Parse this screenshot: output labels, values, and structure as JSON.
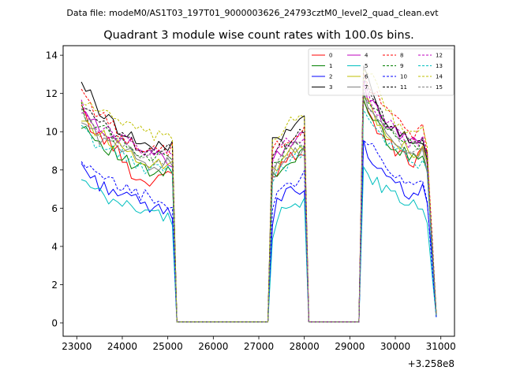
{
  "suptitle": "Data file: modeM0/AS1T03_197T01_9000003626_24793cztM0_level2_quad_clean.evt",
  "chart_data": {
    "type": "line",
    "title": "Quadrant 3 module wise count rates with 100.0s bins.",
    "xlabel": "",
    "ylabel": "",
    "x_offset_label": "+3.258e8",
    "xlim": [
      22700,
      31300
    ],
    "ylim": [
      -0.7,
      14.5
    ],
    "xticks": [
      23000,
      24000,
      25000,
      26000,
      27000,
      28000,
      29000,
      30000,
      31000
    ],
    "xtick_labels": [
      "23000",
      "24000",
      "25000",
      "26000",
      "27000",
      "28000",
      "29000",
      "30000",
      "31000"
    ],
    "yticks": [
      0,
      2,
      4,
      6,
      8,
      10,
      12,
      14
    ],
    "ytick_labels": [
      "0",
      "2",
      "4",
      "6",
      "8",
      "10",
      "12",
      "14"
    ],
    "segments": [
      {
        "x_start": 23100,
        "x_end": 25100,
        "n": 21
      },
      {
        "x_start": 25200,
        "x_end": 27200,
        "n": 21
      },
      {
        "x_start": 27300,
        "x_end": 28000,
        "n": 8
      },
      {
        "x_start": 28100,
        "x_end": 29200,
        "n": 12
      },
      {
        "x_start": 29300,
        "x_end": 30900,
        "n": 17
      }
    ],
    "series": [
      {
        "name": "0",
        "color": "#ff0000",
        "dash": false,
        "values": [
          [
            11.1,
            9.8,
            9.4,
            8.2,
            7.3,
            7.6,
            8.1
          ],
          [
            0.05
          ],
          [
            7.6,
            8.0,
            8.4,
            8.6,
            8.8,
            8.9,
            9.0,
            9.1
          ],
          [
            0.05
          ],
          [
            11.4,
            10.5,
            9.6,
            9.0,
            8.6,
            8.3,
            9.9,
            0.4
          ]
        ]
      },
      {
        "name": "1",
        "color": "#008000",
        "dash": false,
        "values": [
          [
            10.5,
            9.6,
            9.0,
            8.4,
            8.0,
            7.7,
            8.0
          ],
          [
            0.05
          ],
          [
            7.6,
            7.9,
            8.1,
            8.4,
            8.6,
            8.5,
            8.7,
            8.9
          ],
          [
            0.05
          ],
          [
            11.6,
            10.6,
            9.8,
            9.2,
            8.8,
            8.5,
            9.3,
            0.4
          ]
        ]
      },
      {
        "name": "2",
        "color": "#0000ff",
        "dash": false,
        "values": [
          [
            8.3,
            7.3,
            7.0,
            6.6,
            6.2,
            5.9,
            5.8
          ],
          [
            0.05
          ],
          [
            5.2,
            6.2,
            6.5,
            6.8,
            6.9,
            7.0,
            7.1,
            7.0
          ],
          [
            0.05
          ],
          [
            9.3,
            8.3,
            7.6,
            7.2,
            6.9,
            6.7,
            7.0,
            0.3
          ]
        ]
      },
      {
        "name": "3",
        "color": "#000000",
        "dash": false,
        "values": [
          [
            12.7,
            11.3,
            10.5,
            9.9,
            9.4,
            9.1,
            9.3
          ],
          [
            0.05
          ],
          [
            9.9,
            9.7,
            9.5,
            10.1,
            10.2,
            10.3,
            10.5,
            10.8
          ],
          [
            0.05
          ],
          [
            13.4,
            11.8,
            10.7,
            10.1,
            9.7,
            9.3,
            9.8,
            0.5
          ]
        ]
      },
      {
        "name": "4",
        "color": "#bf00bf",
        "dash": false,
        "values": [
          [
            11.0,
            10.3,
            9.9,
            9.5,
            9.0,
            8.7,
            8.5
          ],
          [
            0.05
          ],
          [
            8.5,
            8.8,
            9.0,
            9.3,
            9.4,
            9.6,
            9.7,
            9.9
          ],
          [
            0.05
          ],
          [
            12.3,
            11.3,
            10.6,
            10.0,
            9.6,
            9.3,
            9.7,
            0.4
          ]
        ]
      },
      {
        "name": "5",
        "color": "#00bfbf",
        "dash": false,
        "values": [
          [
            7.4,
            6.8,
            6.3,
            6.2,
            5.9,
            5.7,
            5.4
          ],
          [
            0.05
          ],
          [
            4.7,
            5.6,
            5.8,
            5.9,
            6.0,
            6.1,
            6.2,
            6.3
          ],
          [
            0.05
          ],
          [
            8.1,
            7.4,
            7.0,
            6.6,
            6.3,
            6.1,
            6.2,
            0.3
          ]
        ]
      },
      {
        "name": "6",
        "color": "#bfbf00",
        "dash": false,
        "values": [
          [
            10.8,
            10.0,
            9.5,
            9.0,
            8.6,
            8.3,
            8.5
          ],
          [
            0.05
          ],
          [
            7.8,
            8.2,
            8.5,
            8.7,
            8.9,
            9.0,
            9.1,
            9.2
          ],
          [
            0.05
          ],
          [
            12.0,
            10.9,
            10.2,
            9.6,
            9.2,
            8.9,
            9.4,
            0.4
          ]
        ]
      },
      {
        "name": "7",
        "color": "#808080",
        "dash": false,
        "values": [
          [
            10.6,
            9.8,
            9.3,
            8.9,
            8.5,
            8.2,
            8.4
          ],
          [
            0.05
          ],
          [
            7.7,
            8.1,
            8.3,
            8.6,
            8.7,
            8.8,
            8.9,
            9.0
          ],
          [
            0.05
          ],
          [
            11.8,
            10.8,
            10.0,
            9.5,
            9.1,
            8.8,
            9.2,
            0.4
          ]
        ]
      },
      {
        "name": "8",
        "color": "#ff0000",
        "dash": true,
        "values": [
          [
            12.2,
            11.0,
            10.3,
            9.7,
            9.2,
            8.9,
            9.1
          ],
          [
            0.05
          ],
          [
            8.9,
            9.2,
            9.4,
            9.6,
            9.8,
            9.9,
            10.0,
            10.2
          ],
          [
            0.05
          ],
          [
            13.0,
            12.0,
            11.2,
            10.6,
            10.2,
            9.9,
            10.3,
            0.5
          ]
        ]
      },
      {
        "name": "9",
        "color": "#008000",
        "dash": true,
        "values": [
          [
            11.2,
            10.3,
            9.8,
            9.3,
            8.9,
            8.6,
            8.8
          ],
          [
            0.05
          ],
          [
            8.2,
            8.6,
            8.8,
            9.0,
            9.2,
            9.3,
            9.4,
            9.5
          ],
          [
            0.05
          ],
          [
            12.2,
            11.2,
            10.4,
            9.9,
            9.5,
            9.2,
            9.6,
            0.4
          ]
        ]
      },
      {
        "name": "10",
        "color": "#0000ff",
        "dash": true,
        "values": [
          [
            8.2,
            7.7,
            7.3,
            7.0,
            6.7,
            6.4,
            6.2
          ],
          [
            0.05
          ],
          [
            5.8,
            6.5,
            6.8,
            7.1,
            7.3,
            7.4,
            7.5,
            7.6
          ],
          [
            0.05
          ],
          [
            9.8,
            8.9,
            8.2,
            7.7,
            7.3,
            7.1,
            7.3,
            0.3
          ]
        ]
      },
      {
        "name": "11",
        "color": "#000000",
        "dash": true,
        "values": [
          [
            11.4,
            10.5,
            10.0,
            9.6,
            9.2,
            8.9,
            9.1
          ],
          [
            0.05
          ],
          [
            8.6,
            9.0,
            9.2,
            9.4,
            9.6,
            9.7,
            9.8,
            9.9
          ],
          [
            0.05
          ],
          [
            12.6,
            11.5,
            10.7,
            10.1,
            9.7,
            9.4,
            9.8,
            0.4
          ]
        ]
      },
      {
        "name": "12",
        "color": "#bf00bf",
        "dash": true,
        "values": [
          [
            11.3,
            10.4,
            9.9,
            9.5,
            9.1,
            8.8,
            9.0
          ],
          [
            0.05
          ],
          [
            8.4,
            8.8,
            9.0,
            9.3,
            9.4,
            9.5,
            9.6,
            9.7
          ],
          [
            0.05
          ],
          [
            12.4,
            11.4,
            10.6,
            10.0,
            9.6,
            9.3,
            9.7,
            0.4
          ]
        ]
      },
      {
        "name": "13",
        "color": "#00bfbf",
        "dash": true,
        "values": [
          [
            10.1,
            9.4,
            9.0,
            8.6,
            8.2,
            7.9,
            8.1
          ],
          [
            0.05
          ],
          [
            7.4,
            7.8,
            8.0,
            8.2,
            8.4,
            8.5,
            8.6,
            8.7
          ],
          [
            0.05
          ],
          [
            11.2,
            10.2,
            9.5,
            9.0,
            8.6,
            8.3,
            8.7,
            0.4
          ]
        ]
      },
      {
        "name": "14",
        "color": "#bfbf00",
        "dash": true,
        "values": [
          [
            11.6,
            11.3,
            10.7,
            10.3,
            9.9,
            9.7,
            9.5
          ],
          [
            0.05
          ],
          [
            9.5,
            9.7,
            10.0,
            10.2,
            10.4,
            10.5,
            10.6,
            10.8
          ],
          [
            0.05
          ],
          [
            13.3,
            12.7,
            11.5,
            10.6,
            10.1,
            9.7,
            10.2,
            0.5
          ]
        ]
      },
      {
        "name": "15",
        "color": "#808080",
        "dash": true,
        "values": [
          [
            10.9,
            10.0,
            9.6,
            9.2,
            8.8,
            8.5,
            8.7
          ],
          [
            0.05
          ],
          [
            8.0,
            8.4,
            8.6,
            8.8,
            9.0,
            9.1,
            9.2,
            9.3
          ],
          [
            0.05
          ],
          [
            11.9,
            10.9,
            10.1,
            9.6,
            9.2,
            8.9,
            9.3,
            0.4
          ]
        ]
      }
    ],
    "legend": {
      "placement": "top-right",
      "columns": 4
    }
  }
}
